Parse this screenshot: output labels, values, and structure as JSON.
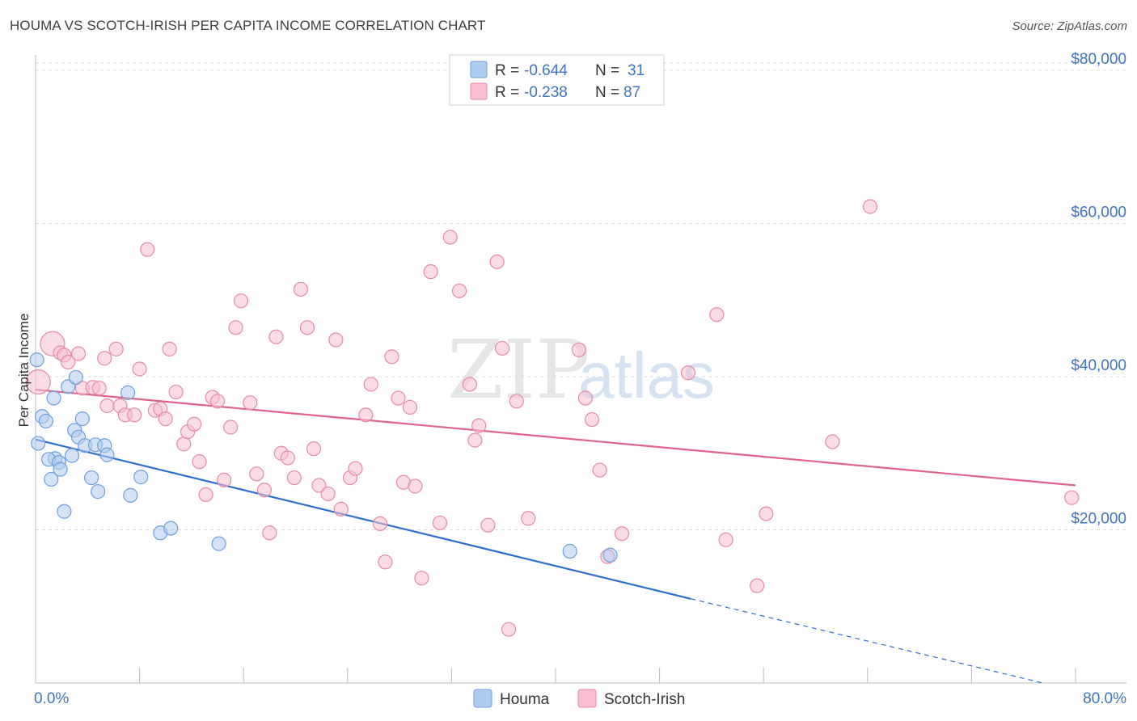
{
  "header": {
    "title": "HOUMA VS SCOTCH-IRISH PER CAPITA INCOME CORRELATION CHART",
    "source": "Source: ZipAtlas.com"
  },
  "legend_top": {
    "rows": [
      {
        "r_label": "R =",
        "r_value": "-0.644",
        "n_label": "N =",
        "n_value": "31"
      },
      {
        "r_label": "R =",
        "r_value": "-0.238",
        "n_label": "N =",
        "n_value": "87"
      }
    ]
  },
  "watermark": {
    "zip": "ZIP",
    "atlas": "atlas"
  },
  "colors": {
    "houma_fill": "#aecbf0",
    "houma_stroke": "#6f9fdb",
    "houma_line": "#2d6fd0",
    "scotch_fill": "#f7bfd0",
    "scotch_stroke": "#e58aa8",
    "scotch_line": "#e0628e",
    "grid": "#dcdcdc",
    "axis_text": "#3f73c4"
  },
  "chart_data": {
    "type": "scatter",
    "title": "HOUMA VS SCOTCH-IRISH PER CAPITA INCOME CORRELATION CHART",
    "xlabel": "",
    "ylabel": "Per Capita Income",
    "xlim": [
      0,
      80
    ],
    "ylim": [
      0,
      82000
    ],
    "x_tick_labels": [
      "0.0%",
      "80.0%"
    ],
    "y_ticks": [
      {
        "value": 20000,
        "label": "$20,000"
      },
      {
        "value": 40000,
        "label": "$40,000"
      },
      {
        "value": 60000,
        "label": "$60,000"
      },
      {
        "value": 80000,
        "label": "$80,000"
      }
    ],
    "legend": [
      "Houma",
      "Scotch-Irish"
    ],
    "series": [
      {
        "name": "Houma",
        "r": -0.644,
        "n": 31,
        "trend": {
          "x0": 0,
          "y0": 31800,
          "x1": 50.4,
          "y1": 11000,
          "dash_to_x": 77.5,
          "dash_to_y": 0
        },
        "points": [
          [
            0.1,
            42200
          ],
          [
            0.5,
            34800
          ],
          [
            0.8,
            34200
          ],
          [
            0.2,
            31300
          ],
          [
            1.5,
            29300
          ],
          [
            1.0,
            29200
          ],
          [
            1.4,
            37200
          ],
          [
            1.2,
            26600
          ],
          [
            1.8,
            28800
          ],
          [
            1.9,
            27900
          ],
          [
            2.2,
            22400
          ],
          [
            2.5,
            38700
          ],
          [
            2.8,
            29700
          ],
          [
            3.0,
            33000
          ],
          [
            3.3,
            32100
          ],
          [
            3.1,
            39900
          ],
          [
            3.6,
            34500
          ],
          [
            3.8,
            31000
          ],
          [
            4.3,
            26800
          ],
          [
            4.6,
            31100
          ],
          [
            4.8,
            25000
          ],
          [
            5.3,
            31000
          ],
          [
            5.5,
            29800
          ],
          [
            7.1,
            37900
          ],
          [
            7.3,
            24500
          ],
          [
            8.1,
            26900
          ],
          [
            9.6,
            19600
          ],
          [
            10.4,
            20200
          ],
          [
            14.1,
            18200
          ],
          [
            41.1,
            17200
          ],
          [
            44.2,
            16700
          ]
        ]
      },
      {
        "name": "Scotch-Irish",
        "r": -0.238,
        "n": 87,
        "trend": {
          "x0": 0,
          "y0": 38300,
          "x1": 80,
          "y1": 25800
        },
        "points": [
          [
            0.2,
            39300
          ],
          [
            1.3,
            44300
          ],
          [
            1.9,
            43100
          ],
          [
            2.2,
            42800
          ],
          [
            2.5,
            41900
          ],
          [
            3.3,
            43000
          ],
          [
            3.6,
            38500
          ],
          [
            4.4,
            38600
          ],
          [
            4.9,
            38500
          ],
          [
            5.3,
            42400
          ],
          [
            5.5,
            36200
          ],
          [
            6.2,
            43600
          ],
          [
            6.5,
            36200
          ],
          [
            6.9,
            35000
          ],
          [
            7.6,
            35000
          ],
          [
            8.0,
            41000
          ],
          [
            8.6,
            56600
          ],
          [
            9.2,
            35600
          ],
          [
            9.6,
            35800
          ],
          [
            10.0,
            34500
          ],
          [
            10.3,
            43600
          ],
          [
            10.8,
            38000
          ],
          [
            11.4,
            31200
          ],
          [
            11.7,
            32800
          ],
          [
            12.2,
            33800
          ],
          [
            12.6,
            28900
          ],
          [
            13.1,
            24600
          ],
          [
            13.6,
            37300
          ],
          [
            14.0,
            36800
          ],
          [
            14.5,
            26500
          ],
          [
            15.0,
            33400
          ],
          [
            15.8,
            49900
          ],
          [
            15.4,
            46400
          ],
          [
            16.5,
            36600
          ],
          [
            17.0,
            27300
          ],
          [
            17.6,
            25200
          ],
          [
            18.0,
            19600
          ],
          [
            18.5,
            45200
          ],
          [
            18.9,
            30000
          ],
          [
            19.4,
            29400
          ],
          [
            19.9,
            26800
          ],
          [
            20.4,
            51400
          ],
          [
            20.9,
            46400
          ],
          [
            21.4,
            30600
          ],
          [
            21.8,
            25800
          ],
          [
            22.5,
            24700
          ],
          [
            23.1,
            44800
          ],
          [
            23.5,
            22700
          ],
          [
            24.2,
            26800
          ],
          [
            24.6,
            28000
          ],
          [
            25.4,
            35000
          ],
          [
            25.8,
            39000
          ],
          [
            26.5,
            20800
          ],
          [
            26.9,
            15800
          ],
          [
            27.4,
            42600
          ],
          [
            27.9,
            37200
          ],
          [
            28.3,
            26200
          ],
          [
            28.8,
            36000
          ],
          [
            29.2,
            25700
          ],
          [
            29.7,
            13700
          ],
          [
            30.4,
            53700
          ],
          [
            31.1,
            20900
          ],
          [
            31.9,
            58200
          ],
          [
            32.6,
            51200
          ],
          [
            33.4,
            39000
          ],
          [
            33.8,
            31700
          ],
          [
            34.1,
            33600
          ],
          [
            34.8,
            20600
          ],
          [
            35.5,
            55000
          ],
          [
            35.9,
            43700
          ],
          [
            36.4,
            7000
          ],
          [
            37.0,
            36800
          ],
          [
            37.9,
            21500
          ],
          [
            41.8,
            43500
          ],
          [
            42.3,
            37200
          ],
          [
            42.8,
            34400
          ],
          [
            43.4,
            27800
          ],
          [
            44.0,
            16500
          ],
          [
            45.1,
            19500
          ],
          [
            50.2,
            40500
          ],
          [
            52.4,
            48100
          ],
          [
            53.1,
            18700
          ],
          [
            55.5,
            12700
          ],
          [
            56.2,
            22100
          ],
          [
            61.3,
            31500
          ],
          [
            64.2,
            62200
          ],
          [
            79.7,
            24200
          ]
        ]
      }
    ]
  }
}
